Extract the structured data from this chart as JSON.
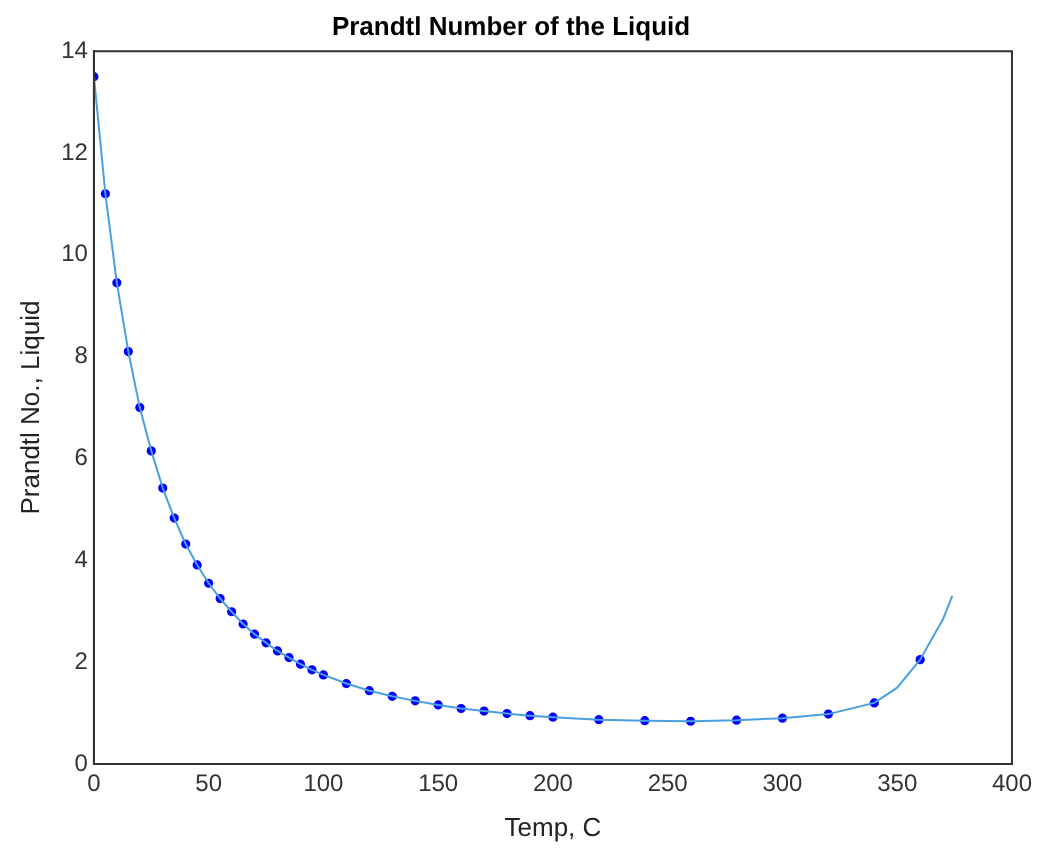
{
  "chart_data": {
    "type": "scatter",
    "title": "Prandtl Number of the Liquid",
    "xlabel": "Temp, C",
    "ylabel": "Prandtl No., Liquid",
    "xlim": [
      0,
      400
    ],
    "xticks": [
      0,
      50,
      100,
      150,
      200,
      250,
      300,
      350,
      400
    ],
    "ylim": [
      0,
      14
    ],
    "yticks": [
      0,
      2,
      4,
      6,
      8,
      10,
      12,
      14
    ],
    "grid": false,
    "legend": false,
    "series": [
      {
        "type": "line",
        "color": "#4a9fe0",
        "marker": "none",
        "x": [
          0.01,
          5,
          10,
          15,
          20,
          25,
          30,
          35,
          40,
          45,
          50,
          55,
          60,
          65,
          70,
          75,
          80,
          85,
          90,
          95,
          100,
          110,
          120,
          130,
          140,
          150,
          160,
          170,
          180,
          190,
          200,
          220,
          240,
          260,
          280,
          300,
          320,
          340,
          350,
          360,
          365,
          370,
          374
        ],
        "values": [
          13.5,
          11.2,
          9.45,
          8.1,
          7.0,
          6.15,
          5.42,
          4.83,
          4.32,
          3.91,
          3.55,
          3.25,
          2.99,
          2.75,
          2.55,
          2.38,
          2.22,
          2.09,
          1.96,
          1.85,
          1.75,
          1.58,
          1.44,
          1.33,
          1.24,
          1.16,
          1.09,
          1.04,
          0.99,
          0.95,
          0.92,
          0.87,
          0.85,
          0.84,
          0.86,
          0.9,
          0.98,
          1.2,
          1.5,
          2.05,
          2.45,
          2.85,
          3.3
        ]
      },
      {
        "type": "scatter",
        "color": "#0000ff",
        "marker": "circle",
        "x": [
          0.01,
          5,
          10,
          15,
          20,
          25,
          30,
          35,
          40,
          45,
          50,
          55,
          60,
          65,
          70,
          75,
          80,
          85,
          90,
          95,
          100,
          110,
          120,
          130,
          140,
          150,
          160,
          170,
          180,
          190,
          200,
          220,
          240,
          260,
          280,
          300,
          320,
          340,
          360
        ],
        "values": [
          13.5,
          11.2,
          9.45,
          8.1,
          7.0,
          6.15,
          5.42,
          4.83,
          4.32,
          3.91,
          3.55,
          3.25,
          2.99,
          2.75,
          2.55,
          2.38,
          2.22,
          2.09,
          1.96,
          1.85,
          1.75,
          1.58,
          1.44,
          1.33,
          1.24,
          1.16,
          1.09,
          1.04,
          0.99,
          0.95,
          0.92,
          0.87,
          0.85,
          0.84,
          0.86,
          0.9,
          0.98,
          1.2,
          2.05
        ]
      }
    ]
  }
}
